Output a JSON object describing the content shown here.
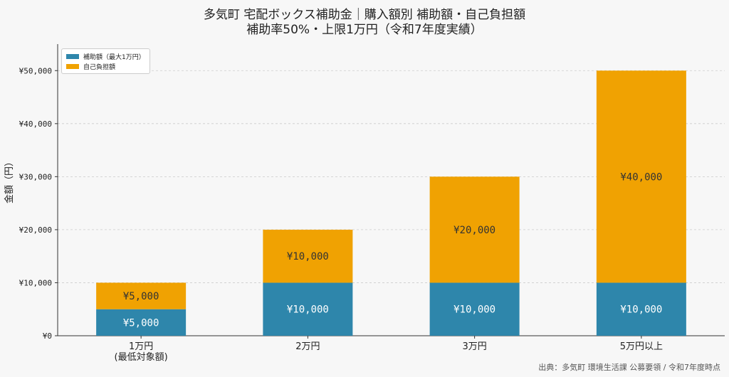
{
  "colors": {
    "subsidy": "#2e86ab",
    "self_pay": "#f0a202",
    "background": "#f7f7f7",
    "grid": "#cccccc"
  },
  "chart_data": {
    "type": "bar",
    "stacked": true,
    "title": "多気町 宅配ボックス補助金｜購入額別 補助額・自己負担額",
    "subtitle": "補助率50%・上限1万円（令和7年度実績）",
    "xlabel": "",
    "ylabel": "金額（円）",
    "ylim": [
      0,
      55000
    ],
    "yticks": [
      0,
      10000,
      20000,
      30000,
      40000,
      50000
    ],
    "ytick_labels": [
      "¥0",
      "¥10,000",
      "¥20,000",
      "¥30,000",
      "¥40,000",
      "¥50,000"
    ],
    "categories": [
      [
        "1万円",
        "(最低対象額)"
      ],
      [
        "2万円"
      ],
      [
        "3万円"
      ],
      [
        "5万円以上"
      ]
    ],
    "series": [
      {
        "name": "補助額（最大1万円）",
        "values": [
          5000,
          10000,
          10000,
          10000
        ],
        "labels": [
          "¥5,000",
          "¥10,000",
          "¥10,000",
          "¥10,000"
        ]
      },
      {
        "name": "自己負担額",
        "values": [
          5000,
          10000,
          20000,
          40000
        ],
        "labels": [
          "¥5,000",
          "¥10,000",
          "¥20,000",
          "¥40,000"
        ]
      }
    ],
    "grid": "horizontal-dashed",
    "legend_position": "top-left",
    "source": "出典：多気町 環境生活課 公募要領 / 令和7年度時点"
  }
}
